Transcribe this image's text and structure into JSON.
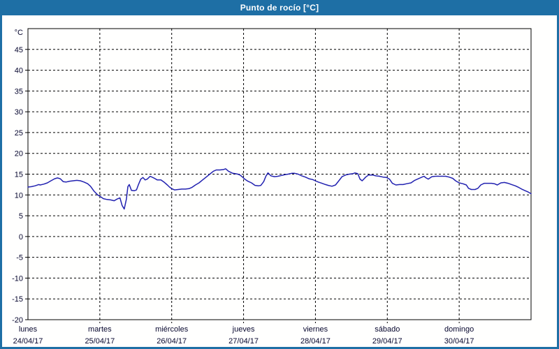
{
  "window": {
    "title": "Punto de rocío [°C]"
  },
  "colors": {
    "titlebar_bg": "#1e6fa5",
    "titlebar_text": "#ffffff",
    "frame_border": "#1e6fa5",
    "plot_background": "#fffffe",
    "axis_color": "#000000",
    "grid_color": "#000000",
    "tick_label_color": "#06062e",
    "series_color": "#2121b0"
  },
  "chart_data": {
    "type": "line",
    "title": "Punto de rocío [°C]",
    "ylabel": "°C",
    "xlabel": "",
    "ylim": [
      -20,
      50
    ],
    "ytick_step": 5,
    "ytick_labels": [
      "45",
      "40",
      "35",
      "30",
      "25",
      "20",
      "15",
      "10",
      "5",
      "0",
      "-5",
      "-10",
      "-15",
      "-20"
    ],
    "grid": "dashed",
    "legend_position": "none",
    "x_days": [
      {
        "name": "lunes",
        "date": "24/04/17"
      },
      {
        "name": "martes",
        "date": "25/04/17"
      },
      {
        "name": "miércoles",
        "date": "26/04/17"
      },
      {
        "name": "jueves",
        "date": "27/04/17"
      },
      {
        "name": "viernes",
        "date": "28/04/17"
      },
      {
        "name": "sábado",
        "date": "29/04/17"
      },
      {
        "name": "domingo",
        "date": "30/04/17"
      }
    ],
    "series": [
      {
        "name": "Punto de rocío",
        "x_unit": "days_from_start",
        "x": [
          0.0,
          0.05,
          0.1,
          0.15,
          0.17,
          0.22,
          0.27,
          0.32,
          0.37,
          0.41,
          0.45,
          0.49,
          0.53,
          0.58,
          0.63,
          0.68,
          0.73,
          0.78,
          0.83,
          0.87,
          0.92,
          0.97,
          1.0,
          1.05,
          1.1,
          1.15,
          1.2,
          1.24,
          1.28,
          1.31,
          1.34,
          1.37,
          1.39,
          1.41,
          1.44,
          1.48,
          1.51,
          1.54,
          1.57,
          1.6,
          1.63,
          1.66,
          1.7,
          1.75,
          1.8,
          1.85,
          1.9,
          1.94,
          1.97,
          2.0,
          2.04,
          2.09,
          2.14,
          2.19,
          2.24,
          2.28,
          2.33,
          2.38,
          2.43,
          2.48,
          2.53,
          2.58,
          2.62,
          2.67,
          2.72,
          2.75,
          2.79,
          2.85,
          2.89,
          2.92,
          2.95,
          2.98,
          3.01,
          3.06,
          3.11,
          3.16,
          3.21,
          3.24,
          3.28,
          3.31,
          3.34,
          3.38,
          3.43,
          3.48,
          3.53,
          3.58,
          3.62,
          3.67,
          3.71,
          3.76,
          3.81,
          3.86,
          3.91,
          3.96,
          4.0,
          4.04,
          4.09,
          4.14,
          4.18,
          4.23,
          4.28,
          4.33,
          4.37,
          4.42,
          4.47,
          4.52,
          4.55,
          4.59,
          4.62,
          4.65,
          4.7,
          4.74,
          4.79,
          4.84,
          4.89,
          4.94,
          4.99,
          5.03,
          5.07,
          5.12,
          5.17,
          5.22,
          5.27,
          5.33,
          5.38,
          5.42,
          5.47,
          5.51,
          5.54,
          5.57,
          5.62,
          5.67,
          5.72,
          5.77,
          5.81,
          5.86,
          5.91,
          5.95,
          6.0,
          6.05,
          6.1,
          6.13,
          6.17,
          6.22,
          6.26,
          6.3,
          6.35,
          6.4,
          6.45,
          6.49,
          6.53,
          6.58,
          6.63,
          6.68,
          6.73,
          6.78,
          6.83,
          6.87,
          6.92,
          6.96,
          7.0
        ],
        "y": [
          11.9,
          12.0,
          12.2,
          12.5,
          12.4,
          12.6,
          12.9,
          13.4,
          13.9,
          14.1,
          13.9,
          13.2,
          13.1,
          13.3,
          13.4,
          13.5,
          13.4,
          13.1,
          12.7,
          12.1,
          10.9,
          10.0,
          9.7,
          9.1,
          8.9,
          8.8,
          8.6,
          9.0,
          9.3,
          7.5,
          6.6,
          9.0,
          12.0,
          12.5,
          11.1,
          11.0,
          11.2,
          12.6,
          13.8,
          14.2,
          13.6,
          13.8,
          14.5,
          14.1,
          13.6,
          13.6,
          13.0,
          12.4,
          11.9,
          11.5,
          11.2,
          11.3,
          11.4,
          11.4,
          11.5,
          11.8,
          12.4,
          12.9,
          13.6,
          14.3,
          15.0,
          15.7,
          16.0,
          16.0,
          16.1,
          16.3,
          15.7,
          15.2,
          15.1,
          15.0,
          14.8,
          14.4,
          13.9,
          13.3,
          12.9,
          12.3,
          12.2,
          12.3,
          13.2,
          14.5,
          15.3,
          14.6,
          14.4,
          14.5,
          14.7,
          14.9,
          15.0,
          15.2,
          15.2,
          15.0,
          14.6,
          14.3,
          13.9,
          13.7,
          13.4,
          13.1,
          12.8,
          12.5,
          12.3,
          12.1,
          12.4,
          13.5,
          14.4,
          14.8,
          15.0,
          15.1,
          15.3,
          15.1,
          13.8,
          13.4,
          14.3,
          14.8,
          14.8,
          14.6,
          14.5,
          14.3,
          14.2,
          13.8,
          12.8,
          12.4,
          12.5,
          12.5,
          12.7,
          12.9,
          13.5,
          13.8,
          14.2,
          14.5,
          14.1,
          13.8,
          14.4,
          14.5,
          14.5,
          14.5,
          14.5,
          14.3,
          14.0,
          13.4,
          12.9,
          12.7,
          12.4,
          11.6,
          11.3,
          11.3,
          11.6,
          12.4,
          12.8,
          12.8,
          12.8,
          12.7,
          12.4,
          12.9,
          13.0,
          12.8,
          12.5,
          12.2,
          11.8,
          11.4,
          11.0,
          10.7,
          10.3
        ]
      }
    ]
  }
}
